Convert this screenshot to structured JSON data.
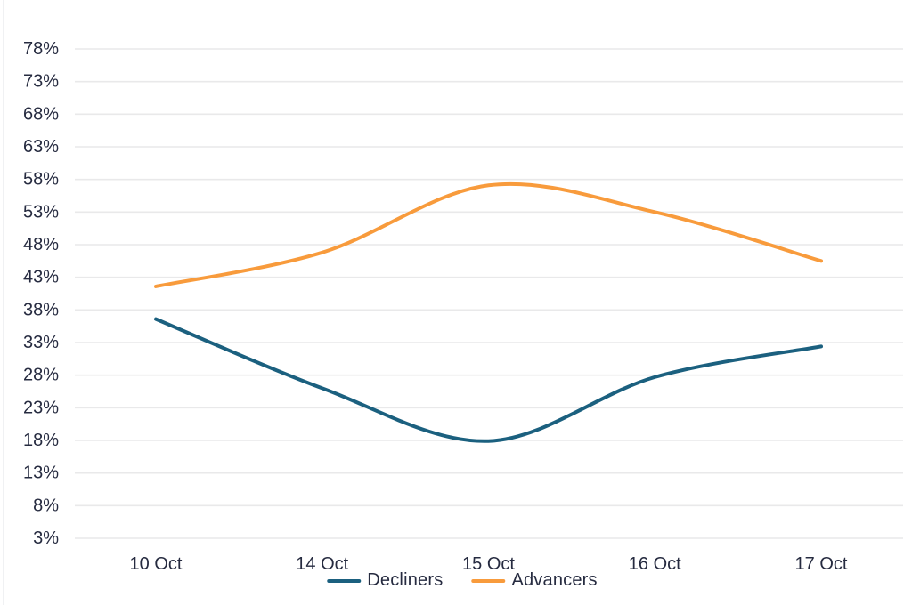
{
  "chart_data": {
    "type": "line",
    "title": "",
    "xlabel": "",
    "ylabel": "",
    "x": [
      "10 Oct",
      "14 Oct",
      "15 Oct",
      "16 Oct",
      "17 Oct"
    ],
    "series": [
      {
        "name": "Decliners",
        "color": "#1b607f",
        "values": [
          36.6,
          26.0,
          17.9,
          27.7,
          32.4
        ]
      },
      {
        "name": "Advancers",
        "color": "#f89b3c",
        "values": [
          41.6,
          46.8,
          57.1,
          53.0,
          45.5
        ]
      }
    ],
    "y_ticks": [
      78,
      73,
      68,
      63,
      58,
      53,
      48,
      43,
      38,
      33,
      28,
      23,
      18,
      13,
      8,
      3
    ],
    "y_tick_suffix": "%",
    "ylim": [
      3,
      78
    ],
    "grid": true,
    "curve": "smooth",
    "legend_position": "bottom-center",
    "colors": {
      "text": "#262b40",
      "gridline": "#e9e9ea",
      "background": "#ffffff"
    }
  }
}
